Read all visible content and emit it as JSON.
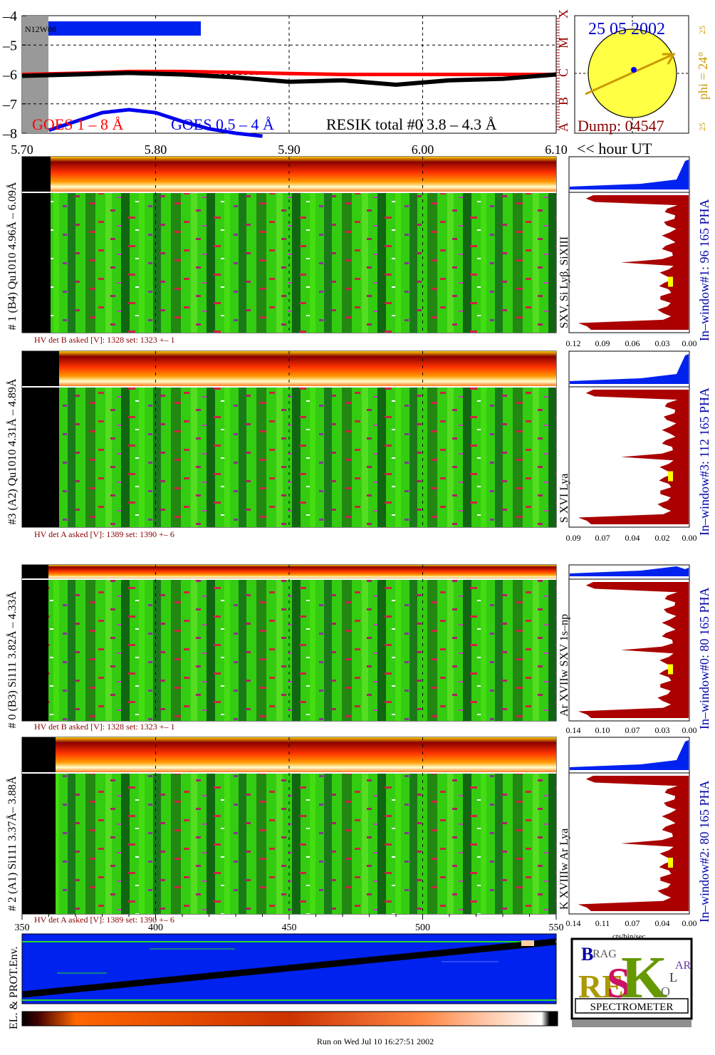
{
  "goes_panel": {
    "noaa_region": "N12W08",
    "legend": {
      "goes_long": "GOES 1 – 8 Å",
      "goes_short": "GOES 0.5 – 4 Å",
      "resik": "RESIK total #0  3.8 – 4.3 Å"
    },
    "flare_classes": [
      "A",
      "B",
      "C",
      "M",
      "X"
    ],
    "hour_axis_label": "<< hour UT",
    "colors": {
      "long": "#ff0000",
      "short": "#0000ee",
      "resik": "#000000",
      "gap": "#999999"
    }
  },
  "sun_panel": {
    "date": "25 05 2002",
    "dump": "Dump: 04547",
    "phi": "phi = 24°",
    "edge_top": "25",
    "edge_bottom": "25",
    "colors": {
      "disk": "#ffff44",
      "arrow": "#cc9900",
      "marker": "#0000ff",
      "date": "#0000cc",
      "dump": "#880000"
    }
  },
  "channels": [
    {
      "left_label": "# 1 (B4) Qu1010 4.96Å – 6.09Å",
      "line_label": "SXV, Si Lyβ, SiXIII",
      "window_label": "In–window#1:  96 165  PHA",
      "hv": "HV det B asked [V]:  1328 set:  1323 +–    1",
      "hist_ticks": [
        "0.12",
        "0.09",
        "0.06",
        "0.03",
        "0.00"
      ]
    },
    {
      "left_label": "#3 (A2) Qu1010  4.31Å – 4.89Å",
      "line_label": "S XVI Lya",
      "window_label": "In–window#3:  112 165  PHA",
      "hv": "HV det A asked [V]:  1389 set:  1390 +–    6",
      "hist_ticks": [
        "0.09",
        "0.07",
        "0.04",
        "0.02",
        "0.00"
      ]
    },
    {
      "left_label": "# 0 (B3) Si111  3.82Å – 4.33Å",
      "line_label": "Ar XVIIw  SXV 1s–np",
      "window_label": "In–window#0:  80 165  PHA",
      "hv": "HV det B asked [V]:  1328 set:  1323 +–    1",
      "hist_ticks": [
        "0.14",
        "0.10",
        "0.07",
        "0.03",
        "0.00"
      ]
    },
    {
      "left_label": "# 2 (A1) Si111  3.37Å– 3.88Å",
      "line_label": "K XVIIIw  Ar Lya",
      "window_label": "In–window#2:  80 165  PHA",
      "hv": "HV det A asked [V]:  1389 set:  1390 +–    6",
      "hist_ticks": [
        "0.14",
        "0.11",
        "0.07",
        "0.04",
        "0.00"
      ]
    }
  ],
  "hist_xlabel": "cts/bin/sec",
  "env_panel": {
    "label": "EL. & PROT.Env.",
    "colors": {
      "bg": "#0022ee",
      "track": "#000000",
      "green": "#22dd22"
    }
  },
  "logo": {
    "letters": {
      "b": "B",
      "rag": "RAG",
      "re": "RE",
      "s": "S",
      "k": "K",
      "o": "O",
      "l": "L",
      "ar": "AR"
    },
    "spectrometer": "SPECTROMETER"
  },
  "footer": "Run on Wed Jul 10 16:27:51 2002",
  "chart_data": [
    {
      "type": "line",
      "title": "",
      "x_axis": {
        "ticks": [
          "5.70",
          "5.80",
          "5.90",
          "6.00",
          "6.10"
        ],
        "range": [
          5.7,
          6.1
        ],
        "label": "<< hour UT"
      },
      "y_axis": {
        "ticks": [
          "–4",
          "–5",
          "–6",
          "–7",
          "–8"
        ],
        "range": [
          -8,
          -4
        ],
        "scale": "log10 flux"
      },
      "grid": true,
      "series": [
        {
          "name": "GOES 1 – 8 Å",
          "x": [
            5.7,
            5.75,
            5.78,
            5.82,
            5.86,
            5.9,
            5.94,
            5.98,
            6.02,
            6.06,
            6.1
          ],
          "y": [
            -6.0,
            -5.95,
            -5.9,
            -5.9,
            -5.93,
            -5.97,
            -6.0,
            -6.0,
            -6.0,
            -6.0,
            -6.0
          ]
        },
        {
          "name": "GOES 0.5 – 4 Å",
          "x": [
            5.72,
            5.74,
            5.76,
            5.78,
            5.8,
            5.82,
            5.84,
            5.86,
            5.88
          ],
          "y": [
            -7.9,
            -7.6,
            -7.3,
            -7.2,
            -7.3,
            -7.6,
            -7.85,
            -8.0,
            -8.1
          ]
        },
        {
          "name": "RESIK total #0  3.8 – 4.3 Å",
          "x": [
            5.7,
            5.74,
            5.78,
            5.82,
            5.86,
            5.9,
            5.94,
            5.98,
            6.02,
            6.06,
            6.1
          ],
          "y": [
            -6.05,
            -6.0,
            -5.95,
            -6.0,
            -6.1,
            -6.25,
            -6.2,
            -6.35,
            -6.2,
            -6.15,
            -6.0
          ]
        }
      ]
    },
    {
      "type": "heatmap",
      "title": "",
      "x_axis": {
        "ticks": [
          "350",
          "400",
          "450",
          "500",
          "550"
        ],
        "range": [
          350,
          550
        ]
      },
      "note_shared_time_axis": [
        "5.70",
        "5.80",
        "5.90",
        "6.00",
        "6.10"
      ]
    }
  ]
}
